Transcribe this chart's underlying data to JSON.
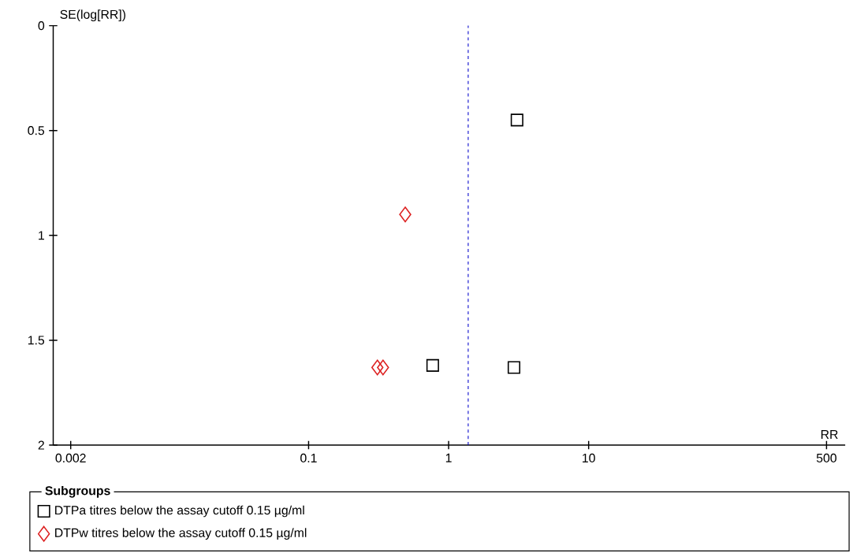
{
  "chart_data": {
    "type": "scatter",
    "xlabel": "RR",
    "ylabel": "SE(log[RR])",
    "legend_title": "Subgroups",
    "legend": "bottom",
    "log": "x",
    "xlim": [
      0.0015,
      680
    ],
    "xticks": [
      0.002,
      0.1,
      1,
      10,
      500
    ],
    "ylim": [
      2,
      0
    ],
    "yticks": [
      0,
      0.5,
      1,
      1.5,
      2
    ],
    "ref_lines": [
      {
        "axis": "x",
        "value": 1.38,
        "color": "#0000cc",
        "line_style": "dashed"
      }
    ],
    "series": [
      {
        "name": "DTPa titres below the assay cutoff 0.15 µg/ml",
        "color": "#000000",
        "marker": "square",
        "x": [
          3.08,
          0.77,
          2.93
        ],
        "values": [
          0.45,
          1.62,
          1.63
        ]
      },
      {
        "name": "DTPw titres below the assay cutoff 0.15 µg/ml",
        "color": "#dd2222",
        "marker": "diamond",
        "x": [
          0.49,
          0.31,
          0.34
        ],
        "values": [
          0.9,
          1.63,
          1.63
        ]
      }
    ]
  }
}
